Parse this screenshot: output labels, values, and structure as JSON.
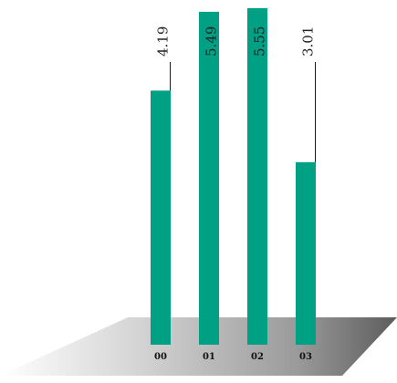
{
  "chart_data": {
    "type": "bar",
    "title": "",
    "xlabel": "",
    "ylabel": "",
    "categories": [
      "00",
      "01",
      "02",
      "03"
    ],
    "values": [
      4.19,
      5.49,
      5.55,
      3.01
    ],
    "ylim": [
      0,
      7.5
    ],
    "grid": false,
    "legend": "none",
    "bar_color": "#00a085",
    "leader_color": "#1a1a1a"
  }
}
